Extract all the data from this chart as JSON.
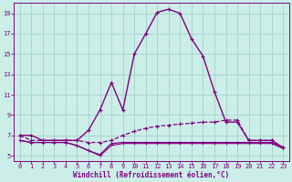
{
  "xlabel": "Windchill (Refroidissement éolien,°C)",
  "background_color": "#cceee8",
  "grid_color": "#aad4ce",
  "line_color": "#800080",
  "hours": [
    0,
    1,
    2,
    3,
    4,
    5,
    6,
    7,
    8,
    9,
    10,
    11,
    12,
    13,
    14,
    15,
    16,
    17,
    18,
    19,
    20,
    21,
    22,
    23
  ],
  "temp_line": [
    7.0,
    7.0,
    6.5,
    6.5,
    6.5,
    6.5,
    7.5,
    9.5,
    12.2,
    9.5,
    15.0,
    17.0,
    19.1,
    19.4,
    19.0,
    16.5,
    14.8,
    11.3,
    8.3,
    8.3,
    6.5,
    6.5,
    6.5,
    5.8
  ],
  "windchill_dashed": [
    7.0,
    6.5,
    6.5,
    6.5,
    6.5,
    6.5,
    6.3,
    6.3,
    6.5,
    7.0,
    7.4,
    7.7,
    7.9,
    8.0,
    8.1,
    8.2,
    8.3,
    8.3,
    8.5,
    8.5,
    6.5,
    6.5,
    6.5,
    5.8
  ],
  "windchill_flat1": [
    6.5,
    6.3,
    6.3,
    6.3,
    6.3,
    6.0,
    5.5,
    5.1,
    6.2,
    6.3,
    6.3,
    6.3,
    6.3,
    6.3,
    6.3,
    6.3,
    6.3,
    6.3,
    6.3,
    6.3,
    6.3,
    6.3,
    6.3,
    5.8
  ],
  "windchill_flat2": [
    6.5,
    6.3,
    6.3,
    6.3,
    6.3,
    6.0,
    5.5,
    5.0,
    6.0,
    6.2,
    6.2,
    6.2,
    6.2,
    6.2,
    6.2,
    6.2,
    6.2,
    6.2,
    6.2,
    6.2,
    6.2,
    6.2,
    6.2,
    5.7
  ],
  "ylim_min": 4.5,
  "ylim_max": 20.0,
  "xlim_min": -0.5,
  "xlim_max": 23.5,
  "yticks": [
    5,
    7,
    9,
    11,
    13,
    15,
    17,
    19
  ],
  "xticks": [
    0,
    1,
    2,
    3,
    4,
    5,
    6,
    7,
    8,
    9,
    10,
    11,
    12,
    13,
    14,
    15,
    16,
    17,
    18,
    19,
    20,
    21,
    22,
    23
  ],
  "tick_fontsize": 5,
  "xlabel_fontsize": 5.5
}
